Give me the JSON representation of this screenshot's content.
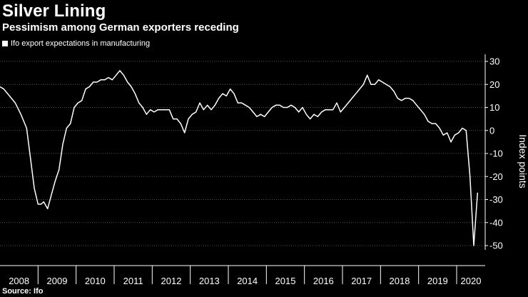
{
  "chart_data": {
    "type": "line",
    "title": "Silver Lining",
    "subtitle": "Pessimism among German exporters receding",
    "legend": "Ifo export expectations in manufacturing",
    "ylabel": "Index points",
    "source": "Source: Ifo",
    "ylim": [
      -50,
      30
    ],
    "yticks": [
      30,
      20,
      10,
      0,
      -10,
      -20,
      -30,
      -40,
      -50
    ],
    "ytick_labels": [
      "30",
      "20",
      "10",
      "0",
      "-10",
      "-20",
      "-30",
      "-40",
      "-50"
    ],
    "x_categories": [
      "2008",
      "2009",
      "2010",
      "2011",
      "2012",
      "2013",
      "2014",
      "2015",
      "2016",
      "2017",
      "2018",
      "2019",
      "2020"
    ],
    "xlim": [
      2008.0,
      2020.75
    ],
    "grid": true,
    "colors": {
      "line": "#ffffff",
      "background": "#000000",
      "grid": "#555555"
    },
    "series": [
      {
        "x": [
          2008.0,
          2008.1,
          2008.25,
          2008.4,
          2008.55,
          2008.7,
          2008.8,
          2008.9,
          2009.0,
          2009.08,
          2009.15,
          2009.25,
          2009.35,
          2009.45,
          2009.55,
          2009.65,
          2009.75,
          2009.85,
          2009.95,
          2010.05,
          2010.15,
          2010.25,
          2010.35,
          2010.45,
          2010.55,
          2010.65,
          2010.75,
          2010.85,
          2010.95,
          2011.05,
          2011.15,
          2011.25,
          2011.35,
          2011.45,
          2011.55,
          2011.65,
          2011.75,
          2011.85,
          2011.95,
          2012.05,
          2012.15,
          2012.25,
          2012.35,
          2012.45,
          2012.55,
          2012.65,
          2012.75,
          2012.85,
          2012.95,
          2013.05,
          2013.15,
          2013.25,
          2013.35,
          2013.45,
          2013.55,
          2013.65,
          2013.75,
          2013.85,
          2013.95,
          2014.05,
          2014.15,
          2014.25,
          2014.35,
          2014.45,
          2014.55,
          2014.65,
          2014.75,
          2014.85,
          2014.95,
          2015.05,
          2015.15,
          2015.25,
          2015.35,
          2015.45,
          2015.55,
          2015.65,
          2015.75,
          2015.85,
          2015.95,
          2016.05,
          2016.15,
          2016.25,
          2016.35,
          2016.45,
          2016.55,
          2016.65,
          2016.75,
          2016.85,
          2016.95,
          2017.05,
          2017.15,
          2017.25,
          2017.35,
          2017.45,
          2017.55,
          2017.65,
          2017.75,
          2017.85,
          2017.95,
          2018.05,
          2018.15,
          2018.25,
          2018.35,
          2018.45,
          2018.55,
          2018.65,
          2018.75,
          2018.85,
          2018.95,
          2019.05,
          2019.15,
          2019.25,
          2019.35,
          2019.45,
          2019.55,
          2019.65,
          2019.75,
          2019.85,
          2019.95,
          2020.05,
          2020.15,
          2020.25,
          2020.35,
          2020.45,
          2020.55
        ],
        "values": [
          19,
          18,
          15,
          12,
          7,
          1,
          -12,
          -25,
          -32,
          -32,
          -31,
          -34,
          -28,
          -22,
          -17,
          -6,
          1,
          3,
          10,
          12,
          13,
          18,
          19,
          21,
          21,
          22,
          22,
          23,
          22,
          24,
          26,
          24,
          21,
          19,
          16,
          12,
          10,
          7,
          9,
          8,
          9,
          9,
          9,
          9,
          5,
          5,
          3,
          -1,
          5,
          7,
          8,
          12,
          9,
          11,
          9,
          11,
          14,
          16,
          15,
          18,
          16,
          12,
          12,
          11,
          10,
          8,
          6,
          7,
          6,
          8,
          10,
          11,
          11,
          10,
          10,
          11,
          10,
          8,
          10,
          7,
          5,
          7,
          6,
          8,
          9,
          9,
          9,
          12,
          8,
          10,
          12,
          14,
          16,
          18,
          20,
          24,
          20,
          20,
          22,
          21,
          20,
          19,
          17,
          14,
          13,
          14,
          14,
          13,
          11,
          9,
          7,
          4,
          3,
          3,
          1,
          -2,
          -1,
          -5,
          -2,
          -1,
          1,
          0,
          -20,
          -50,
          -27
        ]
      }
    ]
  }
}
